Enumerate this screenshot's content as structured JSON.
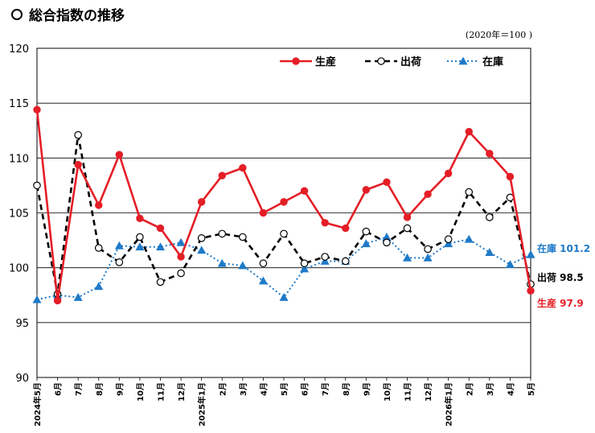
{
  "header": {
    "title": "総合指数の推移",
    "base_note": "(2020年＝100 )"
  },
  "chart_data": {
    "type": "line",
    "title": "総合指数の推移",
    "ylim": [
      90,
      120
    ],
    "yticks": [
      90,
      95,
      100,
      105,
      110,
      115,
      120
    ],
    "grid": true,
    "legend_position": "top-right",
    "categories": [
      "2024年5月",
      "6月",
      "7月",
      "8月",
      "9月",
      "10月",
      "11月",
      "12月",
      "2025年1月",
      "2月",
      "3月",
      "4月",
      "5月",
      "6月",
      "7月",
      "8月",
      "9月",
      "10月",
      "11月",
      "12月",
      "2026年1月",
      "2月",
      "3月",
      "4月",
      "5月"
    ],
    "series": [
      {
        "name": "生産",
        "color": "#e41e26",
        "style": "solid-filled-circle",
        "values": [
          114.4,
          97.0,
          109.4,
          105.7,
          110.3,
          104.5,
          103.6,
          101.0,
          106.0,
          108.4,
          109.1,
          105.0,
          106.0,
          107.0,
          104.1,
          103.6,
          107.1,
          107.8,
          104.6,
          106.7,
          108.6,
          112.4,
          110.4,
          108.3,
          97.9
        ]
      },
      {
        "name": "出荷",
        "color": "#000000",
        "style": "dashed-open-circle",
        "values": [
          107.5,
          97.6,
          112.1,
          101.8,
          100.5,
          102.8,
          98.7,
          99.5,
          102.7,
          103.1,
          102.8,
          100.4,
          103.1,
          100.4,
          101.0,
          100.6,
          103.3,
          102.3,
          103.6,
          101.7,
          102.6,
          106.9,
          104.6,
          106.4,
          98.5
        ]
      },
      {
        "name": "在庫",
        "color": "#1e7ac8",
        "style": "dotted-triangle",
        "values": [
          97.1,
          97.5,
          97.3,
          98.3,
          102.0,
          101.9,
          101.9,
          102.3,
          101.6,
          100.4,
          100.2,
          98.8,
          97.3,
          99.9,
          100.6,
          100.6,
          102.2,
          102.8,
          100.9,
          100.9,
          102.2,
          102.6,
          101.4,
          100.3,
          101.2
        ]
      }
    ],
    "end_labels": [
      {
        "series": "在庫",
        "text": "在庫 101.2"
      },
      {
        "series": "出荷",
        "text": "出荷 98.5"
      },
      {
        "series": "生産",
        "text": "生産 97.9"
      }
    ]
  }
}
